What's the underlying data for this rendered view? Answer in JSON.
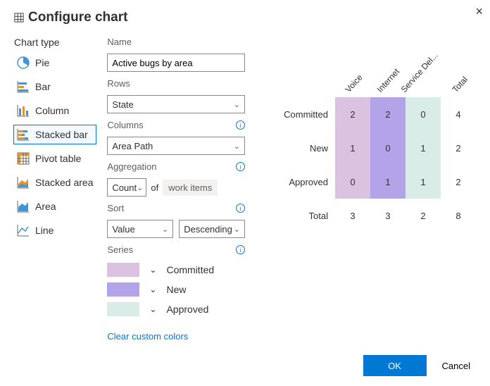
{
  "dialog": {
    "title": "Configure chart",
    "close_label": "×"
  },
  "chart_type": {
    "title": "Chart type",
    "items": [
      {
        "label": "Pie",
        "selected": false
      },
      {
        "label": "Bar",
        "selected": false
      },
      {
        "label": "Column",
        "selected": false
      },
      {
        "label": "Stacked bar",
        "selected": true
      },
      {
        "label": "Pivot table",
        "selected": false
      },
      {
        "label": "Stacked area",
        "selected": false
      },
      {
        "label": "Area",
        "selected": false
      },
      {
        "label": "Line",
        "selected": false
      }
    ]
  },
  "form": {
    "name_label": "Name",
    "name_value": "Active bugs by area",
    "rows_label": "Rows",
    "rows_value": "State",
    "columns_label": "Columns",
    "columns_value": "Area Path",
    "aggregation_label": "Aggregation",
    "aggregation_value": "Count",
    "aggregation_of": "of",
    "aggregation_field": "work items",
    "sort_label": "Sort",
    "sort_by": "Value",
    "sort_dir": "Descending",
    "series_label": "Series",
    "series": [
      {
        "label": "Committed",
        "color": "#dbc2e0"
      },
      {
        "label": "New",
        "color": "#b3a3e8"
      },
      {
        "label": "Approved",
        "color": "#d9ece8"
      }
    ],
    "clear_colors": "Clear custom colors"
  },
  "preview": {
    "columns": [
      "Voice",
      "Internet",
      "Service Del...",
      "Total"
    ],
    "rows": [
      {
        "label": "Committed",
        "cells": [
          2,
          2,
          0,
          4
        ]
      },
      {
        "label": "New",
        "cells": [
          1,
          0,
          1,
          2
        ]
      },
      {
        "label": "Approved",
        "cells": [
          0,
          1,
          1,
          2
        ]
      }
    ],
    "total_label": "Total",
    "totals": [
      3,
      3,
      2,
      8
    ],
    "cell_colors": [
      "#dbc2e0",
      "#b3a3e8",
      "#d9ece8",
      "#ffffff"
    ]
  },
  "footer": {
    "ok": "OK",
    "cancel": "Cancel"
  }
}
